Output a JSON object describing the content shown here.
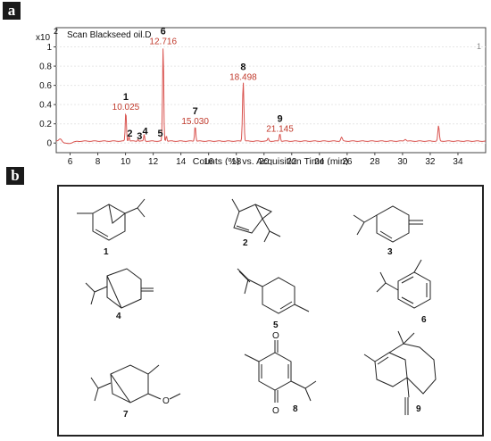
{
  "panels": {
    "a": "a",
    "b": "b"
  },
  "chart_data": {
    "type": "line",
    "title": "Scan Blackseed oil.D",
    "y_multiplier": "x10",
    "y_exponent": "2",
    "xlabel": "Counts (%) vs. Acquisition Time (min)",
    "xlim": [
      5,
      36
    ],
    "ylim": [
      -0.1,
      1.2
    ],
    "x_ticks": [
      6,
      8,
      10,
      12,
      14,
      16,
      18,
      20,
      22,
      24,
      26,
      28,
      30,
      32,
      34
    ],
    "y_ticks": [
      0,
      0.2,
      0.4,
      0.6,
      0.8,
      1
    ],
    "corner_label": "1",
    "line_color": "#d9534f",
    "label_color": "#c0392b",
    "peaks": [
      {
        "x": 5.3,
        "y": 0.035,
        "w": 0.15
      },
      {
        "x": 10.025,
        "y": 0.31,
        "w": 0.06
      },
      {
        "x": 10.25,
        "y": 0.05,
        "w": 0.05
      },
      {
        "x": 10.9,
        "y": 0.02,
        "w": 0.05
      },
      {
        "x": 11.35,
        "y": 0.07,
        "w": 0.05
      },
      {
        "x": 12.716,
        "y": 0.99,
        "w": 0.06
      },
      {
        "x": 12.95,
        "y": 0.06,
        "w": 0.05
      },
      {
        "x": 15.03,
        "y": 0.16,
        "w": 0.06
      },
      {
        "x": 18.498,
        "y": 0.62,
        "w": 0.07
      },
      {
        "x": 20.3,
        "y": 0.03,
        "w": 0.06
      },
      {
        "x": 21.145,
        "y": 0.08,
        "w": 0.06
      },
      {
        "x": 25.6,
        "y": 0.04,
        "w": 0.08
      },
      {
        "x": 30.2,
        "y": 0.02,
        "w": 0.1
      },
      {
        "x": 32.6,
        "y": 0.16,
        "w": 0.07
      }
    ],
    "peak_labels": [
      {
        "num": "1",
        "time": "10.025",
        "x": 10.025,
        "y": 0.31
      },
      {
        "num": "2",
        "time": "",
        "x": 10.25,
        "y": 0.05
      },
      {
        "num": "3",
        "time": "",
        "x": 10.95,
        "y": 0.02
      },
      {
        "num": "4",
        "time": "",
        "x": 11.35,
        "y": 0.07
      },
      {
        "num": "5",
        "time": "",
        "x": 12.45,
        "y": 0.05
      },
      {
        "num": "6",
        "time": "12.716",
        "x": 12.716,
        "y": 0.99
      },
      {
        "num": "7",
        "time": "15.030",
        "x": 15.03,
        "y": 0.16
      },
      {
        "num": "8",
        "time": "18.498",
        "x": 18.498,
        "y": 0.62
      },
      {
        "num": "9",
        "time": "21.145",
        "x": 21.145,
        "y": 0.08
      }
    ]
  },
  "structures": [
    {
      "label": "1"
    },
    {
      "label": "2"
    },
    {
      "label": "3"
    },
    {
      "label": "4"
    },
    {
      "label": "5"
    },
    {
      "label": "6"
    },
    {
      "label": "7"
    },
    {
      "label": "8"
    },
    {
      "label": "9"
    }
  ],
  "atoms": {
    "oxygen": "O"
  }
}
